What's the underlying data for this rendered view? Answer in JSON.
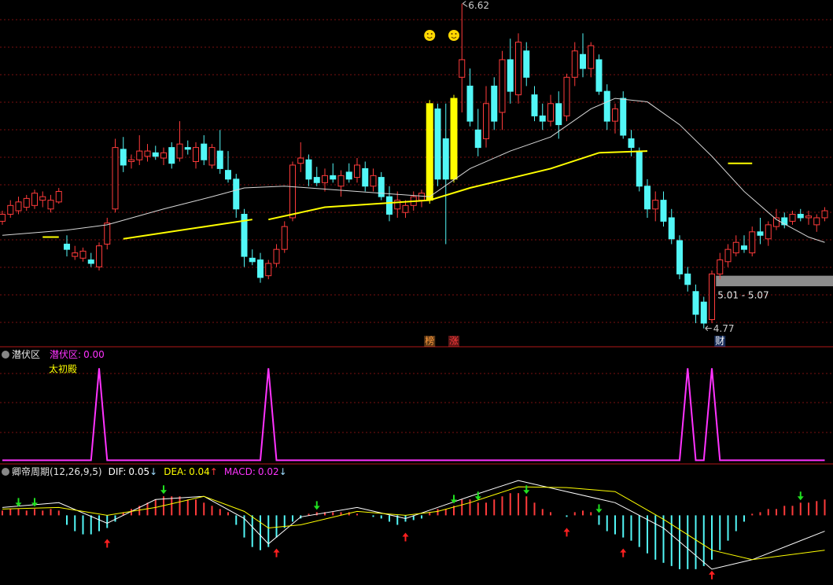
{
  "chart_data": [
    {
      "type": "candlestick",
      "ylim": [
        4.67,
        6.64
      ],
      "grid": true,
      "colors": {
        "up": "#ff3b3b",
        "down": "#52f7f7",
        "highlight": "#ffff00"
      },
      "highlight": [
        53,
        56
      ],
      "candles": [
        [
          5.38,
          5.44,
          5.36,
          5.42
        ],
        [
          5.42,
          5.5,
          5.4,
          5.47
        ],
        [
          5.44,
          5.52,
          5.42,
          5.49
        ],
        [
          5.46,
          5.53,
          5.44,
          5.51
        ],
        [
          5.47,
          5.56,
          5.45,
          5.54
        ],
        [
          5.5,
          5.55,
          5.46,
          5.52
        ],
        [
          5.45,
          5.53,
          5.43,
          5.5
        ],
        [
          5.49,
          5.57,
          5.48,
          5.55
        ],
        [
          5.25,
          5.3,
          5.18,
          5.22
        ],
        [
          5.18,
          5.24,
          5.16,
          5.2
        ],
        [
          5.17,
          5.23,
          5.15,
          5.21
        ],
        [
          5.16,
          5.2,
          5.12,
          5.14
        ],
        [
          5.12,
          5.26,
          5.1,
          5.24
        ],
        [
          5.25,
          5.4,
          5.22,
          5.37
        ],
        [
          5.45,
          5.85,
          5.43,
          5.8
        ],
        [
          5.79,
          5.86,
          5.66,
          5.7
        ],
        [
          5.72,
          5.76,
          5.68,
          5.73
        ],
        [
          5.73,
          5.87,
          5.7,
          5.78
        ],
        [
          5.75,
          5.82,
          5.72,
          5.78
        ],
        [
          5.77,
          5.81,
          5.73,
          5.75
        ],
        [
          5.74,
          5.8,
          5.7,
          5.77
        ],
        [
          5.8,
          5.83,
          5.68,
          5.71
        ],
        [
          5.74,
          5.95,
          5.72,
          5.82
        ],
        [
          5.8,
          5.84,
          5.76,
          5.79
        ],
        [
          5.72,
          5.83,
          5.68,
          5.8
        ],
        [
          5.82,
          5.87,
          5.7,
          5.73
        ],
        [
          5.7,
          5.82,
          5.68,
          5.8
        ],
        [
          5.78,
          5.9,
          5.65,
          5.68
        ],
        [
          5.67,
          5.78,
          5.6,
          5.62
        ],
        [
          5.62,
          5.65,
          5.4,
          5.45
        ],
        [
          5.42,
          5.45,
          5.12,
          5.18
        ],
        [
          5.17,
          5.22,
          5.13,
          5.15
        ],
        [
          5.16,
          5.2,
          5.03,
          5.06
        ],
        [
          5.07,
          5.16,
          5.05,
          5.14
        ],
        [
          5.14,
          5.25,
          5.12,
          5.22
        ],
        [
          5.22,
          5.38,
          5.2,
          5.35
        ],
        [
          5.4,
          5.72,
          5.38,
          5.7
        ],
        [
          5.71,
          5.83,
          5.66,
          5.74
        ],
        [
          5.73,
          5.76,
          5.58,
          5.62
        ],
        [
          5.63,
          5.69,
          5.58,
          5.6
        ],
        [
          5.6,
          5.68,
          5.55,
          5.64
        ],
        [
          5.64,
          5.71,
          5.6,
          5.62
        ],
        [
          5.58,
          5.67,
          5.52,
          5.64
        ],
        [
          5.66,
          5.71,
          5.6,
          5.62
        ],
        [
          5.63,
          5.74,
          5.6,
          5.7
        ],
        [
          5.68,
          5.72,
          5.55,
          5.58
        ],
        [
          5.58,
          5.68,
          5.55,
          5.64
        ],
        [
          5.63,
          5.66,
          5.5,
          5.52
        ],
        [
          5.52,
          5.58,
          5.38,
          5.42
        ],
        [
          5.45,
          5.55,
          5.4,
          5.5
        ],
        [
          5.43,
          5.5,
          5.4,
          5.47
        ],
        [
          5.47,
          5.55,
          5.44,
          5.52
        ],
        [
          5.5,
          5.56,
          5.46,
          5.54
        ],
        [
          5.5,
          6.07,
          5.48,
          6.05
        ],
        [
          6.02,
          6.05,
          5.58,
          5.62
        ],
        [
          5.85,
          6.05,
          5.25,
          5.62
        ],
        [
          5.62,
          6.1,
          5.6,
          6.08
        ],
        [
          6.2,
          6.62,
          6.0,
          6.3
        ],
        [
          6.15,
          6.25,
          5.92,
          5.95
        ],
        [
          5.9,
          6.02,
          5.75,
          5.8
        ],
        [
          5.85,
          6.15,
          5.8,
          6.05
        ],
        [
          6.15,
          6.2,
          5.9,
          5.95
        ],
        [
          6.0,
          6.35,
          5.9,
          6.3
        ],
        [
          6.3,
          6.42,
          6.05,
          6.12
        ],
        [
          6.1,
          6.45,
          6.05,
          6.4
        ],
        [
          6.35,
          6.4,
          6.15,
          6.2
        ],
        [
          6.1,
          6.15,
          5.95,
          5.98
        ],
        [
          5.98,
          6.05,
          5.9,
          5.95
        ],
        [
          5.95,
          6.1,
          5.92,
          6.05
        ],
        [
          6.05,
          6.12,
          5.85,
          5.93
        ],
        [
          5.98,
          6.22,
          5.95,
          6.2
        ],
        [
          6.2,
          6.4,
          6.15,
          6.35
        ],
        [
          6.33,
          6.45,
          6.2,
          6.25
        ],
        [
          6.25,
          6.4,
          6.2,
          6.38
        ],
        [
          6.3,
          6.33,
          6.1,
          6.12
        ],
        [
          6.12,
          6.16,
          5.9,
          5.95
        ],
        [
          5.95,
          6.05,
          5.88,
          6.02
        ],
        [
          6.08,
          6.12,
          5.85,
          5.87
        ],
        [
          5.85,
          5.9,
          5.75,
          5.8
        ],
        [
          5.78,
          5.8,
          5.55,
          5.58
        ],
        [
          5.58,
          5.62,
          5.4,
          5.45
        ],
        [
          5.45,
          5.55,
          5.38,
          5.5
        ],
        [
          5.5,
          5.55,
          5.35,
          5.38
        ],
        [
          5.4,
          5.45,
          5.25,
          5.28
        ],
        [
          5.27,
          5.3,
          5.05,
          5.08
        ],
        [
          5.08,
          5.12,
          4.98,
          5.02
        ],
        [
          4.98,
          5.02,
          4.8,
          4.85
        ],
        [
          4.92,
          4.95,
          4.77,
          4.8
        ],
        [
          4.82,
          5.1,
          4.8,
          5.08
        ],
        [
          5.08,
          5.2,
          5.05,
          5.16
        ],
        [
          5.15,
          5.25,
          5.12,
          5.22
        ],
        [
          5.2,
          5.3,
          5.18,
          5.26
        ],
        [
          5.24,
          5.3,
          5.2,
          5.22
        ],
        [
          5.2,
          5.35,
          5.18,
          5.32
        ],
        [
          5.32,
          5.4,
          5.25,
          5.3
        ],
        [
          5.28,
          5.38,
          5.24,
          5.36
        ],
        [
          5.35,
          5.45,
          5.33,
          5.4
        ],
        [
          5.4,
          5.43,
          5.34,
          5.36
        ],
        [
          5.38,
          5.44,
          5.36,
          5.42
        ],
        [
          5.42,
          5.45,
          5.38,
          5.4
        ],
        [
          5.4,
          5.44,
          5.36,
          5.41
        ],
        [
          5.36,
          5.42,
          5.32,
          5.4
        ],
        [
          5.4,
          5.46,
          5.38,
          5.44
        ]
      ],
      "lines": [
        {
          "color": "#d8d8d8",
          "width": 1,
          "x": [
            0,
            8,
            13,
            20,
            26,
            30,
            35,
            44,
            53,
            58,
            63,
            68,
            73,
            76,
            80,
            84,
            88,
            92,
            96,
            100,
            102
          ],
          "values": [
            5.3,
            5.33,
            5.36,
            5.45,
            5.52,
            5.57,
            5.58,
            5.55,
            5.52,
            5.68,
            5.78,
            5.86,
            6.02,
            6.08,
            6.06,
            5.93,
            5.75,
            5.55,
            5.39,
            5.29,
            5.26
          ]
        },
        {
          "color": "#ffff00",
          "width": 2,
          "x": [
            5,
            7,
            8,
            15,
            31,
            32,
            33,
            40,
            53,
            58,
            68,
            74,
            80,
            81,
            90,
            93
          ],
          "values": [
            5.29,
            5.29,
            null,
            5.28,
            5.39,
            null,
            5.39,
            5.46,
            5.5,
            5.57,
            5.68,
            5.77,
            5.78,
            null,
            5.71,
            5.71
          ]
        }
      ],
      "zone": {
        "range": [
          5.01,
          5.07
        ],
        "label": "5.01 - 5.07",
        "x": 89
      },
      "markers": [
        {
          "x": 53,
          "text": "榜",
          "color": "#ff9a3c"
        },
        {
          "x": 56,
          "text": "涨",
          "color": "#ff3b3b"
        },
        {
          "x": 89,
          "text": "财",
          "color": "#3f7fff"
        }
      ]
    },
    {
      "type": "signal",
      "title": "潜伏区",
      "subtitle": "太初殿",
      "ylim": [
        -0.04,
        1.2
      ],
      "series": [
        {
          "name": "潜伏区:",
          "color": "#ff33ff",
          "value_label": "0.00",
          "values": [
            0,
            0,
            0,
            0,
            0,
            0,
            0,
            0,
            0,
            0,
            0,
            0,
            1,
            0,
            0,
            0,
            0,
            0,
            0,
            0,
            0,
            0,
            0,
            0,
            0,
            0,
            0,
            0,
            0,
            0,
            0,
            0,
            0,
            1,
            0,
            0,
            0,
            0,
            0,
            0,
            0,
            0,
            0,
            0,
            0,
            0,
            0,
            0,
            0,
            0,
            0,
            0,
            0,
            0,
            0,
            0,
            0,
            0,
            0,
            0,
            0,
            0,
            0,
            0,
            0,
            0,
            0,
            0,
            0,
            0,
            0,
            0,
            0,
            0,
            0,
            0,
            0,
            0,
            0,
            0,
            0,
            0,
            0,
            0,
            0,
            1,
            0,
            0,
            1,
            0,
            0,
            0,
            0,
            0,
            0,
            0,
            0,
            0,
            0,
            0,
            0,
            0,
            0
          ]
        }
      ]
    },
    {
      "type": "macd",
      "title": "卿帝周期(12,26,9,5)",
      "ylim": [
        -0.22,
        0.15
      ],
      "lines": [
        {
          "name": "DIF:",
          "color": "#ffffff",
          "readout": 0.05,
          "arrow": "↓",
          "x": [
            0,
            7,
            13,
            19,
            25,
            30,
            33,
            37,
            44,
            50,
            54,
            58,
            64,
            70,
            76,
            82,
            88,
            93,
            102
          ],
          "values": [
            0.025,
            0.04,
            -0.025,
            0.05,
            0.06,
            -0.01,
            -0.09,
            -0.005,
            0.025,
            -0.01,
            0.025,
            0.06,
            0.11,
            0.075,
            0.04,
            -0.04,
            -0.17,
            -0.14,
            -0.05
          ]
        },
        {
          "name": "DEA:",
          "color": "#ffff00",
          "readout": 0.04,
          "arrow": "↑",
          "x": [
            0,
            7,
            13,
            19,
            25,
            30,
            33,
            37,
            44,
            50,
            54,
            58,
            64,
            70,
            76,
            82,
            88,
            93,
            102
          ],
          "values": [
            0.02,
            0.025,
            0,
            0.025,
            0.06,
            0.0125,
            -0.04,
            -0.03,
            0.0125,
            0,
            0.0125,
            0.04,
            0.09,
            0.0875,
            0.075,
            -0.0125,
            -0.11,
            -0.14,
            -0.11
          ]
        }
      ],
      "macd": {
        "name": "MACD:",
        "color": "#ff33ff",
        "up": "#ff3b3b",
        "down": "#52f7f7",
        "readout": 0.02,
        "arrow": "↓",
        "values": [
          0.015,
          0.02,
          0.02,
          0.015,
          0.02,
          0.015,
          0.02,
          0.015,
          -0.03,
          -0.05,
          -0.06,
          -0.06,
          -0.05,
          -0.04,
          -0.02,
          0.01,
          0.02,
          0.03,
          0.04,
          0.05,
          0.06,
          0.06,
          0.06,
          0.05,
          0.05,
          0.04,
          0.03,
          0.02,
          0.01,
          -0.03,
          -0.07,
          -0.1,
          -0.11,
          -0.1,
          -0.07,
          -0.04,
          -0.02,
          -0.01,
          0.005,
          0.01,
          0.01,
          0.01,
          0.01,
          0.01,
          0.005,
          0,
          -0.005,
          -0.01,
          -0.02,
          -0.03,
          -0.02,
          -0.015,
          -0.01,
          0.01,
          0.02,
          0.02,
          0.03,
          0.05,
          0.05,
          0.04,
          0.04,
          0.05,
          0.06,
          0.07,
          0.07,
          0.06,
          0.04,
          0.02,
          0.01,
          0,
          -0.005,
          0.01,
          0.015,
          0.01,
          -0.03,
          -0.05,
          -0.06,
          -0.07,
          -0.08,
          -0.1,
          -0.12,
          -0.14,
          -0.15,
          -0.16,
          -0.17,
          -0.17,
          -0.17,
          -0.16,
          -0.14,
          -0.11,
          -0.08,
          -0.05,
          -0.02,
          0.005,
          0.01,
          0.02,
          0.02,
          0.03,
          0.03,
          0.04,
          0.04,
          0.045,
          0.05
        ]
      },
      "signals": {
        "buy": [
          13,
          34,
          50,
          70,
          77,
          88
        ],
        "sell": [
          2,
          4,
          20,
          39,
          56,
          59,
          65,
          74,
          99
        ]
      }
    }
  ]
}
